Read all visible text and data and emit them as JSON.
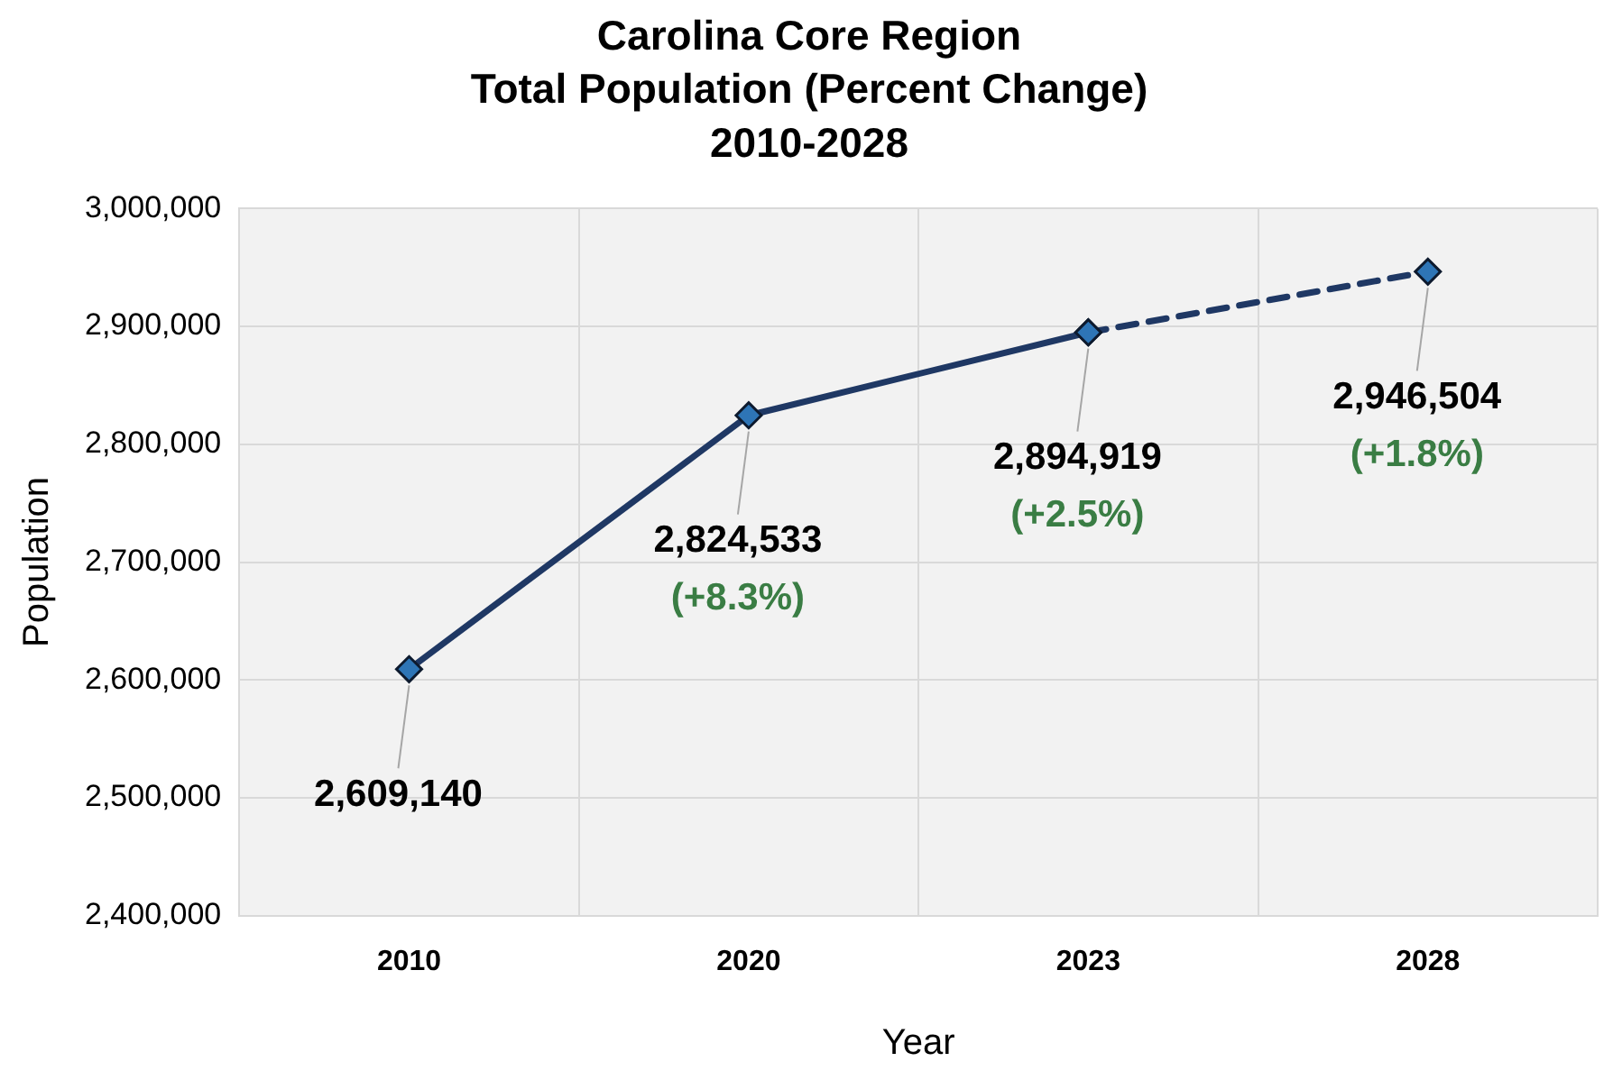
{
  "chart_data": {
    "type": "line",
    "title": "Carolina Core Region\nTotal Population (Percent Change)\n2010-2028",
    "xlabel": "Year",
    "ylabel": "Population",
    "categories": [
      "2010",
      "2020",
      "2023",
      "2028"
    ],
    "series": [
      {
        "color": "#1f3864",
        "values": [
          2609140,
          2824533,
          2894919,
          null
        ],
        "line_style": "solid",
        "value_labels": [
          "2,609,140",
          "2,824,533\n(+8.3%)",
          "2,894,919\n(+2.5%)",
          null
        ]
      },
      {
        "color": "#1f3864",
        "values": [
          null,
          null,
          2894919,
          2946504
        ],
        "line_style": "dashed",
        "value_labels": [
          null,
          null,
          null,
          "2,946,504\n(+1.8%)"
        ]
      }
    ],
    "marker": "diamond",
    "ylim": [
      2400000,
      3000000
    ],
    "yticks": [
      {
        "value": 2400000,
        "label": "2,400,000"
      },
      {
        "value": 2500000,
        "label": "2,500,000"
      },
      {
        "value": 2600000,
        "label": "2,600,000"
      },
      {
        "value": 2700000,
        "label": "2,700,000"
      },
      {
        "value": 2800000,
        "label": "2,800,000"
      },
      {
        "value": 2900000,
        "label": "2,900,000"
      },
      {
        "value": 3000000,
        "label": "3,000,000"
      }
    ],
    "grid": true
  }
}
